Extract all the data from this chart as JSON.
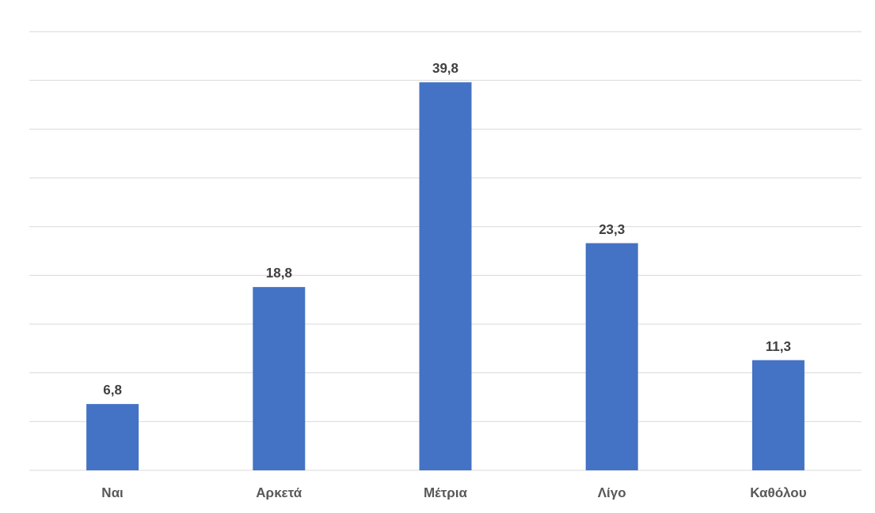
{
  "chart_data": {
    "type": "bar",
    "categories": [
      "Ναι",
      "Αρκετά",
      "Μέτρια",
      "Λίγο",
      "Καθόλου"
    ],
    "values": [
      6.8,
      18.8,
      39.8,
      23.3,
      11.3
    ],
    "value_labels": [
      "6,8",
      "18,8",
      "39,8",
      "23,3",
      "11,3"
    ],
    "color": "#4472c4",
    "ylim": [
      0,
      45
    ],
    "yticks": [
      {
        "value": 0,
        "label": null
      },
      {
        "value": 5,
        "label": null
      },
      {
        "value": 10,
        "label": null
      },
      {
        "value": 15,
        "label": null
      },
      {
        "value": 20,
        "label": null
      },
      {
        "value": 25,
        "label": null
      },
      {
        "value": 30,
        "label": null
      },
      {
        "value": 35,
        "label": null
      },
      {
        "value": 40,
        "label": null
      },
      {
        "value": 45,
        "label": null
      }
    ],
    "grid": "y",
    "tick_labels": "x"
  }
}
